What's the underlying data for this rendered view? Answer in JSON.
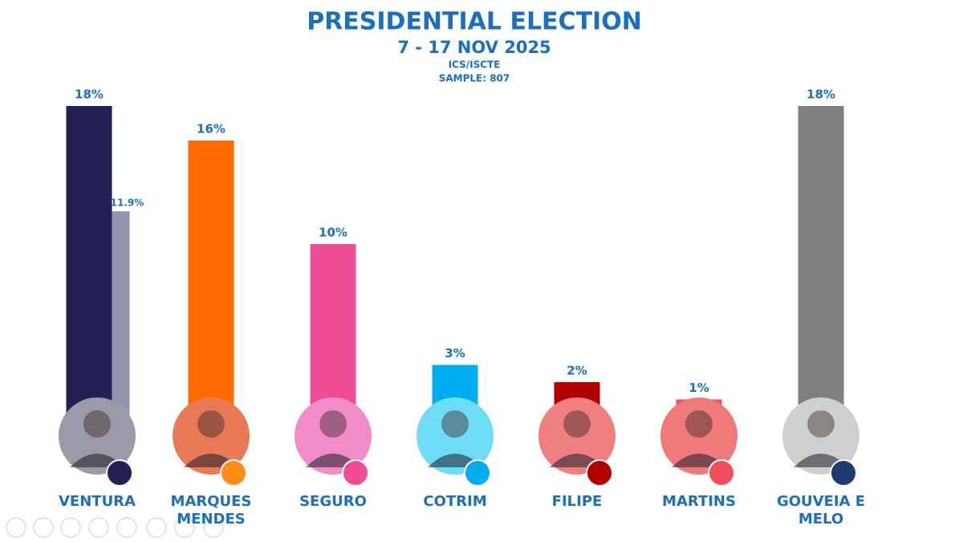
{
  "chart_data": {
    "type": "bar",
    "title": "PRESIDENTIAL ELECTION",
    "subtitle": "7 - 17 NOV 2025",
    "source": "ICS/ISCTE",
    "note": "SAMPLE: 807",
    "categories": [
      "VENTURA",
      "MARQUES MENDES",
      "SEGURO",
      "COTRIM",
      "FILIPE",
      "MARTINS",
      "GOUVEIA E MELO"
    ],
    "ylim": [
      0,
      20
    ],
    "series": [
      {
        "colors": [
          "#222054",
          "#ff6a00",
          "#ef4e97",
          "#00aeef",
          "#b20000",
          "#ef4e5a",
          "#808080"
        ],
        "values": [
          18,
          16,
          10,
          3,
          2,
          1,
          18
        ],
        "value_labels": [
          "18%",
          "16%",
          "10%",
          "3%",
          "2%",
          "1%",
          "18%"
        ]
      },
      {
        "color": "#9394b0",
        "values": [
          11.9,
          null,
          null,
          null,
          null,
          null,
          null
        ],
        "value_labels": [
          "11.9%",
          null,
          null,
          null,
          null,
          null,
          null
        ]
      }
    ]
  }
}
